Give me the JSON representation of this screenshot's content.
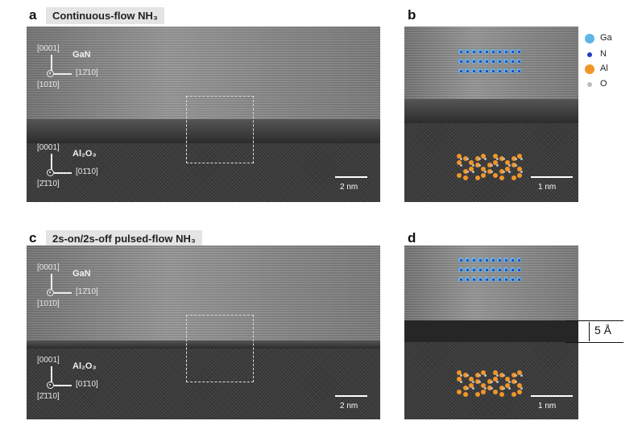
{
  "panels": {
    "a": {
      "label": "a",
      "title": "Continuous-flow NH₃",
      "gan": "GaN",
      "al2o3": "Al₂O₃",
      "gan_up": "[0001]",
      "gan_right": "[12̄10]",
      "gan_out": "[101̄0]",
      "al_up": "[0001]",
      "al_right": "[01̄10]",
      "al_out": "[2̄1̄10]",
      "scale": "2 nm"
    },
    "b": {
      "label": "b",
      "scale": "1 nm"
    },
    "c": {
      "label": "c",
      "title": "2s-on/2s-off pulsed-flow NH₃",
      "gan": "GaN",
      "al2o3": "Al₂O₃",
      "gan_up": "[0001]",
      "gan_right": "[12̄10]",
      "gan_out": "[101̄0]",
      "al_up": "[0001]",
      "al_right": "[01̄10]",
      "al_out": "[2̄1̄10]",
      "scale": "2 nm"
    },
    "d": {
      "label": "d",
      "scale": "1 nm",
      "thickness": "5 Å"
    }
  },
  "legend": {
    "items": [
      {
        "label": "Ga",
        "color": "#5fb4e8"
      },
      {
        "label": "N",
        "color": "#1f3fbf"
      },
      {
        "label": "Al",
        "color": "#f0962a"
      },
      {
        "label": "O",
        "color": "#bdbdbd"
      }
    ]
  }
}
